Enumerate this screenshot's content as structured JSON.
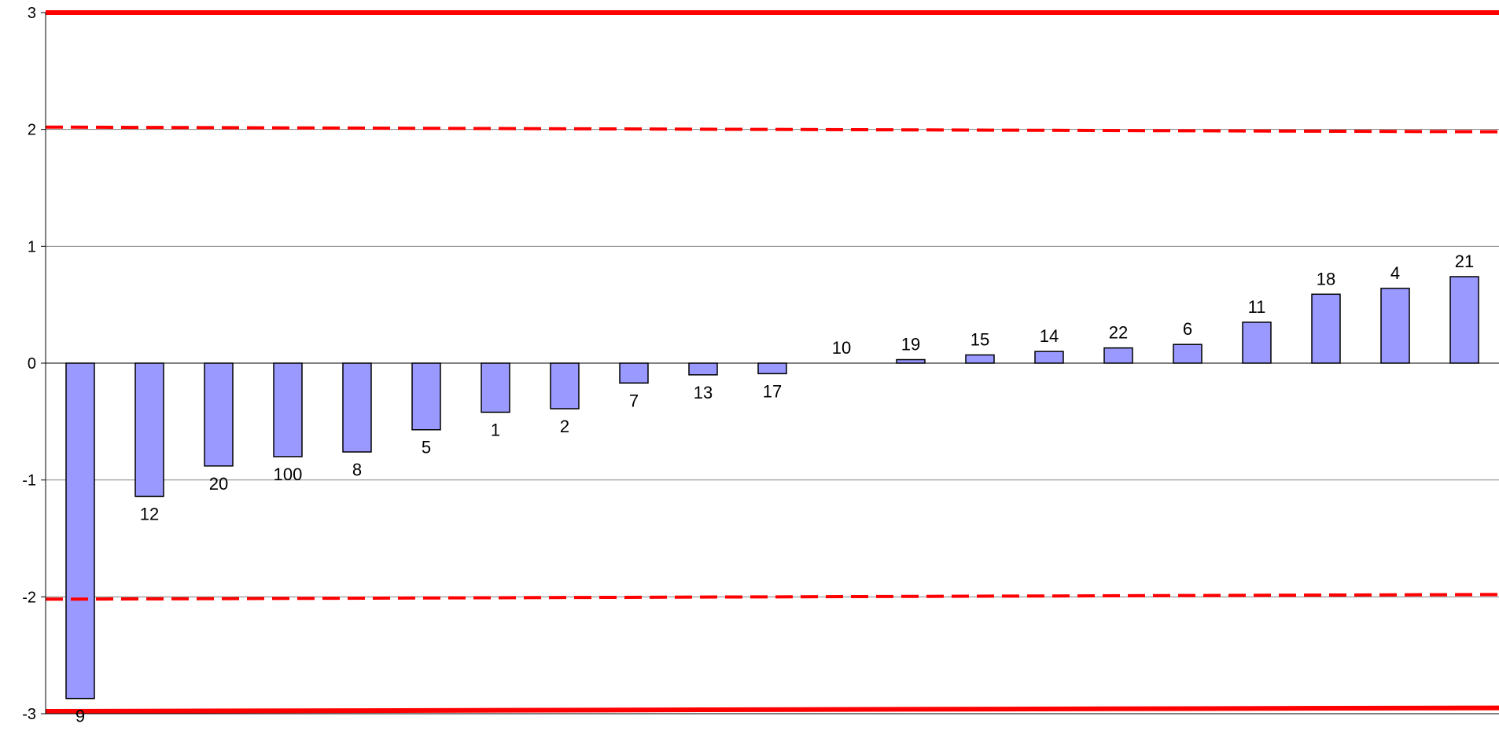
{
  "chart_data": {
    "type": "bar",
    "categories": [
      "9",
      "12",
      "20",
      "100",
      "8",
      "5",
      "1",
      "2",
      "7",
      "13",
      "17",
      "10",
      "19",
      "15",
      "14",
      "22",
      "6",
      "11",
      "18",
      "4",
      "21"
    ],
    "values": [
      -2.87,
      -1.14,
      -0.88,
      -0.8,
      -0.76,
      -0.57,
      -0.42,
      -0.39,
      -0.17,
      -0.1,
      -0.09,
      0.0,
      0.03,
      0.07,
      0.1,
      0.13,
      0.16,
      0.35,
      0.59,
      0.64,
      0.74
    ],
    "ylim": [
      -3,
      3
    ],
    "y_ticks": [
      "3",
      "2",
      "1",
      "0",
      "-1",
      "-2",
      "-3"
    ],
    "grid": true,
    "legend": "none",
    "reference_lines": [
      {
        "style": "solid",
        "y_start": 3.0,
        "y_end": 3.0
      },
      {
        "style": "dashed",
        "y_start": 2.02,
        "y_end": 1.98
      },
      {
        "style": "dashed",
        "y_start": -2.02,
        "y_end": -1.98
      },
      {
        "style": "solid",
        "y_start": -2.98,
        "y_end": -2.95
      }
    ],
    "colors": {
      "bar_fill": "#9999FF",
      "bar_stroke": "#000000",
      "reference_line": "#FF0000",
      "gridline": "#808080"
    }
  }
}
